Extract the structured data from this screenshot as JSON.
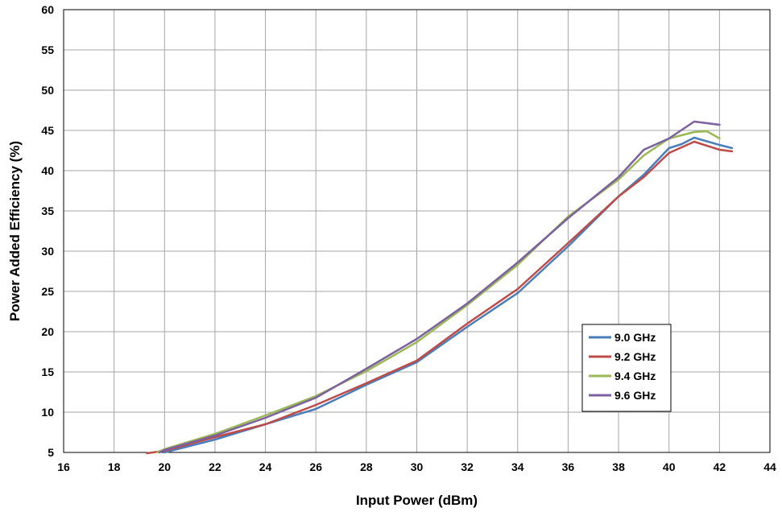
{
  "chart_data": {
    "type": "line",
    "title": "",
    "xlabel": "Input Power (dBm)",
    "ylabel": "Power Added Efficiency (%)",
    "xlim": [
      16,
      44
    ],
    "ylim": [
      5,
      60
    ],
    "xticks": [
      16,
      18,
      20,
      22,
      24,
      26,
      28,
      30,
      32,
      34,
      36,
      38,
      40,
      42,
      44
    ],
    "yticks": [
      5,
      10,
      15,
      20,
      25,
      30,
      35,
      40,
      45,
      50,
      55,
      60
    ],
    "grid": true,
    "legend_position": "lower-right",
    "series": [
      {
        "name": "9.0 GHz",
        "color": "#4a7ebb",
        "x": [
          20,
          22,
          24,
          26,
          28,
          30,
          32,
          34,
          36,
          38,
          39,
          40,
          40.5,
          41,
          42,
          42.5
        ],
        "y": [
          5.0,
          6.6,
          8.5,
          10.4,
          13.4,
          16.2,
          20.6,
          24.8,
          30.6,
          36.8,
          39.5,
          42.8,
          43.3,
          44.1,
          43.2,
          42.8
        ]
      },
      {
        "name": "9.2 GHz",
        "color": "#be4b48",
        "x": [
          19.3,
          20,
          22,
          24,
          26,
          28,
          30,
          32,
          34,
          36,
          38,
          39,
          40,
          41,
          42,
          42.5
        ],
        "y": [
          4.9,
          5.2,
          6.9,
          8.5,
          10.9,
          13.6,
          16.4,
          21.0,
          25.3,
          31.0,
          36.8,
          39.2,
          42.2,
          43.6,
          42.6,
          42.4
        ]
      },
      {
        "name": "9.4 GHz",
        "color": "#98b954",
        "x": [
          19.7,
          20,
          22,
          24,
          26,
          28,
          30,
          32,
          34,
          36,
          38,
          39,
          40,
          41,
          41.5,
          42
        ],
        "y": [
          5.0,
          5.4,
          7.3,
          9.6,
          12.0,
          15.1,
          18.7,
          23.3,
          28.3,
          34.3,
          38.9,
          41.9,
          44.0,
          44.8,
          44.9,
          44.0
        ]
      },
      {
        "name": "9.6 GHz",
        "color": "#7d60a0",
        "x": [
          19.8,
          20,
          22,
          24,
          26,
          28,
          30,
          32,
          34,
          36,
          38,
          39,
          40,
          41,
          42
        ],
        "y": [
          5.0,
          5.3,
          7.1,
          9.3,
          11.8,
          15.4,
          19.1,
          23.5,
          28.6,
          34.1,
          39.2,
          42.6,
          44.0,
          46.1,
          45.7
        ]
      }
    ]
  }
}
